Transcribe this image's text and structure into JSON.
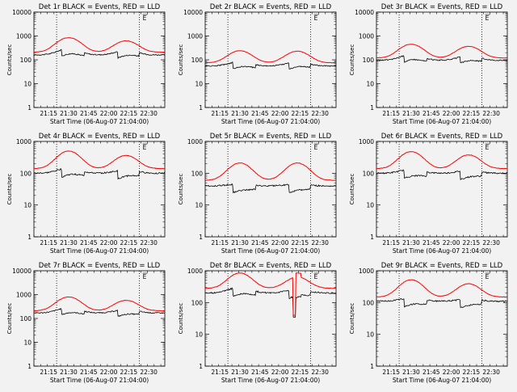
{
  "chart_data": {
    "type": "line",
    "title_suffix": "BLACK = Events, RED = LLD",
    "xlabel": "Start Time (06-Aug-07 21:04:00)",
    "ylabel": "Counts/sec",
    "x_tick_labels": [
      "21:15",
      "21:30",
      "21:45",
      "22:00",
      "22:15",
      "22:30"
    ],
    "x_tick_minutes": [
      11,
      26,
      41,
      56,
      71,
      86
    ],
    "x_range_minutes": [
      0,
      98
    ],
    "dotted_lines_minutes": [
      17,
      79
    ],
    "orbit_marker": "E",
    "colors": {
      "events": "#000000",
      "lld": "#ff0000"
    },
    "panels": [
      {
        "title": "Det 1r",
        "y_tick_labels": [
          "1",
          "10",
          "100",
          "1000",
          "10000"
        ],
        "ylim": [
          1,
          10000
        ],
        "events_base": 160,
        "lld_base": 210,
        "events_peak": 320,
        "lld_peak": 850,
        "second_peak_ratio": 0.65,
        "glitch": false
      },
      {
        "title": "Det 2r",
        "y_tick_labels": [
          "1",
          "10",
          "100",
          "1000",
          "10000"
        ],
        "ylim": [
          1,
          10000
        ],
        "events_base": 55,
        "lld_base": 75,
        "events_peak": 90,
        "lld_peak": 240,
        "second_peak_ratio": 0.95,
        "glitch": false
      },
      {
        "title": "Det 3r",
        "y_tick_labels": [
          "1",
          "10",
          "100",
          "1000",
          "10000"
        ],
        "ylim": [
          1,
          10000
        ],
        "events_base": 95,
        "lld_base": 120,
        "events_peak": 180,
        "lld_peak": 450,
        "second_peak_ratio": 0.75,
        "glitch": false
      },
      {
        "title": "Det 4r",
        "y_tick_labels": [
          "1",
          "10",
          "100",
          "1000"
        ],
        "ylim": [
          1,
          1000
        ],
        "events_base": 100,
        "lld_base": 140,
        "events_peak": 160,
        "lld_peak": 500,
        "second_peak_ratio": 0.62,
        "glitch": false
      },
      {
        "title": "Det 5r",
        "y_tick_labels": [
          "1",
          "10",
          "100",
          "1000"
        ],
        "ylim": [
          1,
          1000
        ],
        "events_base": 40,
        "lld_base": 60,
        "events_peak": 48,
        "lld_peak": 210,
        "second_peak_ratio": 1.0,
        "glitch": false
      },
      {
        "title": "Det 6r",
        "y_tick_labels": [
          "1",
          "10",
          "100",
          "1000"
        ],
        "ylim": [
          1,
          1000
        ],
        "events_base": 100,
        "lld_base": 140,
        "events_peak": 140,
        "lld_peak": 480,
        "second_peak_ratio": 0.7,
        "glitch": false
      },
      {
        "title": "Det 7r",
        "y_tick_labels": [
          "1",
          "10",
          "100",
          "1000",
          "10000"
        ],
        "ylim": [
          1,
          10000
        ],
        "events_base": 170,
        "lld_base": 210,
        "events_peak": 310,
        "lld_peak": 800,
        "second_peak_ratio": 0.62,
        "glitch": false
      },
      {
        "title": "Det 8r",
        "y_tick_labels": [
          "1",
          "10",
          "100",
          "1000"
        ],
        "ylim": [
          1,
          1000
        ],
        "events_base": 200,
        "lld_base": 280,
        "events_peak": 330,
        "lld_peak": 850,
        "second_peak_ratio": 0.62,
        "glitch": true
      },
      {
        "title": "Det 9r",
        "y_tick_labels": [
          "1",
          "10",
          "100",
          "1000"
        ],
        "ylim": [
          1,
          1000
        ],
        "events_base": 110,
        "lld_base": 150,
        "events_peak": 150,
        "lld_peak": 520,
        "second_peak_ratio": 0.65,
        "glitch": false
      }
    ]
  }
}
